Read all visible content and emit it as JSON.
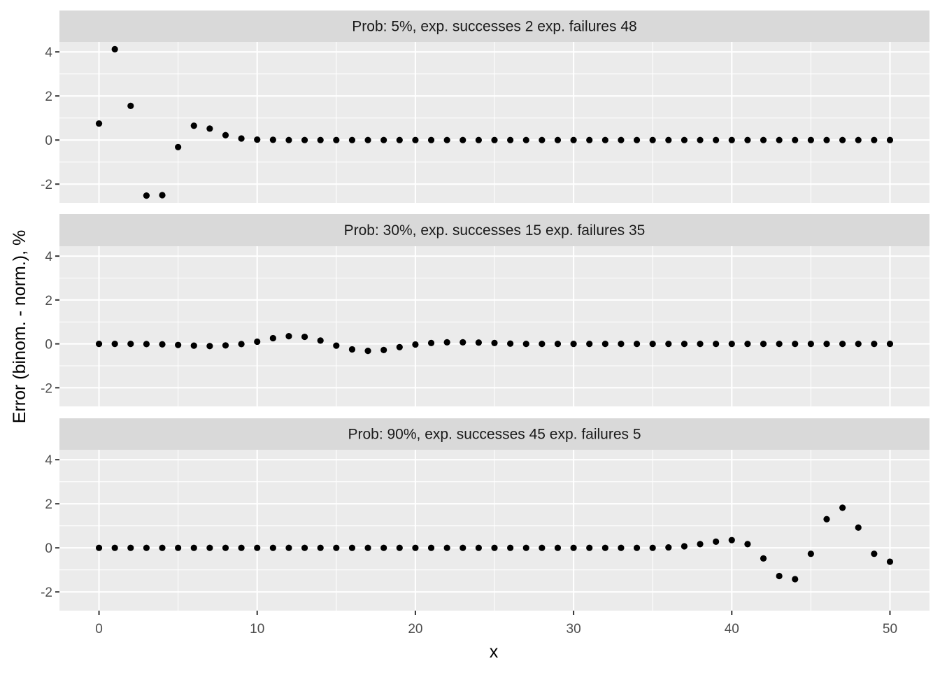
{
  "chart_data": {
    "type": "scatter",
    "xlabel": "x",
    "ylabel": "Error (binom. - norm.), %",
    "xlim": [
      -2.5,
      52.5
    ],
    "ylim": [
      -2.85,
      4.45
    ],
    "x_ticks": [
      0,
      10,
      20,
      30,
      40,
      50
    ],
    "y_ticks": [
      -2,
      0,
      2,
      4
    ],
    "grid": true,
    "x": [
      0,
      1,
      2,
      3,
      4,
      5,
      6,
      7,
      8,
      9,
      10,
      11,
      12,
      13,
      14,
      15,
      16,
      17,
      18,
      19,
      20,
      21,
      22,
      23,
      24,
      25,
      26,
      27,
      28,
      29,
      30,
      31,
      32,
      33,
      34,
      35,
      36,
      37,
      38,
      39,
      40,
      41,
      42,
      43,
      44,
      45,
      46,
      47,
      48,
      49,
      50
    ],
    "facets": [
      {
        "strip": "Prob: 5%, exp. successes 2 exp. failures 48",
        "values": [
          0.75,
          4.12,
          1.55,
          -2.52,
          -2.5,
          -0.32,
          0.65,
          0.52,
          0.22,
          0.07,
          0.02,
          0.01,
          0.0,
          0.0,
          0.0,
          0.0,
          0.0,
          0.0,
          0.0,
          0.0,
          0.0,
          0.0,
          0.0,
          0.0,
          0.0,
          0.0,
          0.0,
          0.0,
          0.0,
          0.0,
          0.0,
          0.0,
          0.0,
          0.0,
          0.0,
          0.0,
          0.0,
          0.0,
          0.0,
          0.0,
          0.0,
          0.0,
          0.0,
          0.0,
          0.0,
          0.0,
          0.0,
          0.0,
          0.0,
          0.0,
          0.0
        ]
      },
      {
        "strip": "Prob: 30%, exp. successes 15 exp. failures 35",
        "values": [
          0.0,
          0.0,
          0.0,
          -0.01,
          -0.02,
          -0.05,
          -0.08,
          -0.1,
          -0.07,
          -0.01,
          0.1,
          0.26,
          0.35,
          0.32,
          0.15,
          -0.08,
          -0.25,
          -0.32,
          -0.28,
          -0.15,
          -0.03,
          0.04,
          0.07,
          0.07,
          0.06,
          0.04,
          0.01,
          0.0,
          0.0,
          0.0,
          0.0,
          0.0,
          0.0,
          0.0,
          0.0,
          0.0,
          0.0,
          0.0,
          0.0,
          0.0,
          0.0,
          0.0,
          0.0,
          0.0,
          0.0,
          0.0,
          0.0,
          0.0,
          0.0,
          0.0,
          0.0
        ]
      },
      {
        "strip": "Prob: 90%, exp. successes 45 exp. failures 5",
        "values": [
          0.0,
          0.0,
          0.0,
          0.0,
          0.0,
          0.0,
          0.0,
          0.0,
          0.0,
          0.0,
          0.0,
          0.0,
          0.0,
          0.0,
          0.0,
          0.0,
          0.0,
          0.0,
          0.0,
          0.0,
          0.0,
          0.0,
          0.0,
          0.0,
          0.0,
          0.0,
          0.0,
          0.0,
          0.0,
          0.0,
          0.0,
          0.0,
          0.0,
          0.0,
          0.0,
          0.0,
          0.02,
          0.07,
          0.17,
          0.28,
          0.35,
          0.17,
          -0.48,
          -1.28,
          -1.42,
          -0.27,
          1.3,
          1.82,
          0.92,
          -0.27,
          -0.63
        ]
      }
    ]
  }
}
